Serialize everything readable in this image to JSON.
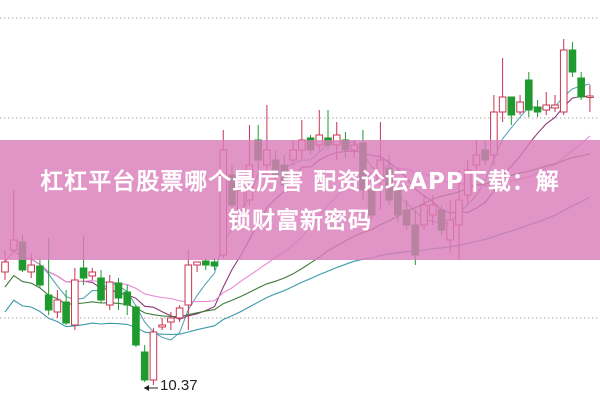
{
  "title_line1": "杠杠平台股票哪个最厉害 配资论坛APP下载：解",
  "title_line2": "锁财富新密码",
  "chart_data": {
    "type": "candlestick",
    "title": "",
    "xlabel": "",
    "ylabel": "",
    "grid": "dotted horizontal",
    "annotations": [
      {
        "text": "10.37",
        "marks": "lowest low"
      }
    ],
    "ohlc": [
      [
        12.63,
        12.83,
        13.07,
        12.47
      ],
      [
        13.07,
        13.27,
        14.27,
        13.03
      ],
      [
        13.23,
        12.67,
        13.37,
        12.63
      ],
      [
        12.63,
        12.77,
        13.01,
        12.51
      ],
      [
        12.75,
        12.37,
        12.91,
        12.31
      ],
      [
        12.17,
        11.87,
        13.31,
        11.77
      ],
      [
        11.83,
        12.07,
        12.27,
        11.71
      ],
      [
        12.03,
        11.61,
        12.27,
        11.57
      ],
      [
        11.57,
        12.47,
        12.71,
        11.47
      ],
      [
        12.71,
        12.51,
        13.35,
        12.37
      ],
      [
        12.55,
        12.63,
        12.71,
        12.47
      ],
      [
        12.51,
        12.07,
        12.67,
        12.01
      ],
      [
        11.97,
        12.43,
        12.57,
        11.87
      ],
      [
        12.41,
        12.11,
        12.51,
        11.87
      ],
      [
        12.23,
        11.97,
        12.37,
        11.77
      ],
      [
        11.93,
        11.17,
        11.97,
        11.13
      ],
      [
        11.03,
        10.47,
        11.17,
        10.43
      ],
      [
        10.47,
        11.43,
        11.51,
        10.37
      ],
      [
        11.53,
        11.57,
        11.71,
        11.47
      ],
      [
        11.63,
        11.71,
        11.83,
        11.47
      ],
      [
        11.71,
        11.91,
        11.97,
        11.63
      ],
      [
        11.97,
        12.77,
        13.07,
        11.47
      ],
      [
        12.77,
        12.83,
        12.83,
        12.63
      ],
      [
        12.85,
        12.77,
        12.91,
        12.67
      ],
      [
        12.83,
        12.75,
        12.91,
        12.67
      ],
      [
        12.97,
        15.07,
        15.47,
        12.91
      ],
      [
        14.57,
        13.97,
        14.77,
        13.77
      ],
      [
        13.87,
        14.27,
        14.47,
        13.77
      ],
      [
        14.07,
        14.77,
        15.57,
        13.97
      ],
      [
        15.27,
        14.87,
        15.57,
        14.67
      ],
      [
        14.77,
        15.07,
        15.97,
        14.57
      ],
      [
        14.87,
        14.57,
        15.07,
        14.47
      ],
      [
        14.77,
        14.37,
        14.97,
        14.27
      ],
      [
        14.87,
        15.07,
        15.27,
        14.77
      ],
      [
        15.07,
        15.27,
        15.67,
        14.87
      ],
      [
        15.31,
        15.07,
        15.37,
        14.97
      ],
      [
        15.17,
        15.37,
        15.87,
        15.07
      ],
      [
        15.31,
        15.17,
        15.87,
        15.07
      ],
      [
        15.17,
        15.37,
        15.63,
        14.87
      ],
      [
        15.27,
        15.07,
        15.43,
        14.91
      ],
      [
        15.07,
        15.17,
        15.27,
        14.91
      ],
      [
        15.21,
        14.27,
        15.47,
        14.07
      ],
      [
        14.27,
        13.77,
        14.37,
        13.67
      ],
      [
        14.47,
        14.87,
        15.63,
        13.87
      ],
      [
        14.71,
        14.07,
        14.97,
        13.97
      ],
      [
        14.27,
        13.77,
        14.37,
        13.63
      ],
      [
        13.87,
        13.57,
        14.07,
        13.47
      ],
      [
        13.57,
        12.97,
        13.87,
        12.77
      ],
      [
        13.57,
        13.97,
        14.17,
        13.47
      ],
      [
        13.77,
        13.97,
        14.17,
        13.57
      ],
      [
        13.87,
        13.47,
        13.97,
        13.37
      ],
      [
        13.27,
        13.67,
        14.07,
        13.03
      ],
      [
        13.57,
        14.07,
        14.67,
        12.87
      ],
      [
        14.17,
        14.67,
        14.87,
        13.97
      ],
      [
        14.77,
        14.97,
        15.27,
        14.67
      ],
      [
        15.07,
        14.87,
        15.27,
        14.77
      ],
      [
        14.97,
        15.83,
        16.17,
        14.77
      ],
      [
        15.83,
        16.13,
        16.91,
        15.63
      ],
      [
        16.13,
        15.77,
        16.13,
        15.57
      ],
      [
        15.83,
        16.03,
        16.17,
        15.77
      ],
      [
        16.47,
        15.87,
        16.63,
        15.73
      ],
      [
        15.93,
        15.83,
        16.07,
        15.73
      ],
      [
        15.87,
        15.97,
        16.23,
        15.77
      ],
      [
        15.91,
        15.97,
        16.17,
        15.83
      ],
      [
        15.83,
        17.07,
        17.29,
        15.77
      ],
      [
        17.07,
        16.63,
        17.23,
        16.53
      ],
      [
        16.51,
        16.13,
        16.63,
        16.07
      ],
      [
        16.13,
        16.15,
        16.37,
        15.83
      ]
    ],
    "low_value": "10.37",
    "colors": {
      "up": "#c8334f",
      "down": "#1f9a2e",
      "ma": [
        "#5aa6b5",
        "#8a3a78",
        "#e98ad6",
        "#3f7a3a",
        "#3a9aa8"
      ],
      "banner": "#db7cba"
    },
    "moving_average_periods": [
      5,
      10,
      20,
      30,
      60
    ]
  }
}
